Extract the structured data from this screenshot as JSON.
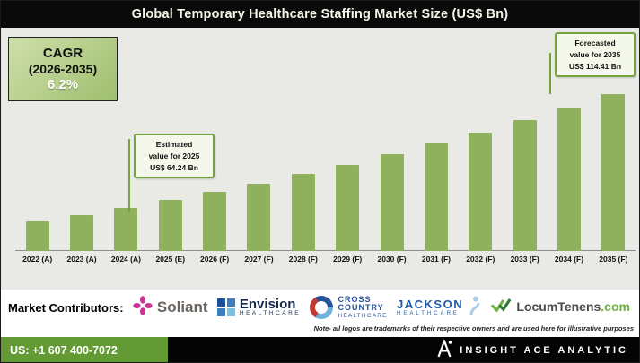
{
  "header": {
    "title": "Global Temporary Healthcare Staffing Market Size (US$ Bn)"
  },
  "cagr_box": {
    "line1": "CAGR",
    "line2": "(2026-2035)",
    "value": "6.2%"
  },
  "callouts": {
    "estimated": {
      "line1": "Estimated",
      "line2": "value for 2025",
      "line3": "US$ 64.24 Bn"
    },
    "forecasted": {
      "line1": "Forecasted",
      "line2": "value for 2035",
      "line3": "US$ 114.41 Bn"
    }
  },
  "chart_data": {
    "type": "bar",
    "title": "Global Temporary Healthcare Staffing Market Size (US$ Bn)",
    "unit": "US$ Bn",
    "categories": [
      "2022 (A)",
      "2023 (A)",
      "2024 (A)",
      "2025 (E)",
      "2026 (F)",
      "2027 (F)",
      "2028 (F)",
      "2029 (F)",
      "2030 (F)",
      "2031 (F)",
      "2032 (F)",
      "2033 (F)",
      "2034 (F)",
      "2035 (F)"
    ],
    "values": [
      54.0,
      57.2,
      60.6,
      64.24,
      68.1,
      72.1,
      76.4,
      80.9,
      85.8,
      90.9,
      96.3,
      102.0,
      108.1,
      114.41
    ],
    "known_points": {
      "2025 (E)": 64.24,
      "2035 (F)": 114.41
    },
    "cagr_2026_2035": "6.2%",
    "bar_color": "#8fb05c",
    "yaxis_visible": false,
    "annotations": [
      "Estimated value for 2025 US$ 64.24 Bn",
      "Forecasted value for 2035 US$ 114.41 Bn"
    ]
  },
  "contributors": {
    "label": "Market Contributors:",
    "items": [
      {
        "name": "Soliant"
      },
      {
        "name": "Envision",
        "sub": "HEALTHCARE"
      },
      {
        "line1": "CROSS",
        "line2": "COUNTRY",
        "sub": "HEALTHCARE"
      },
      {
        "name": "JACKSON",
        "sub": "HEALTHCARE"
      },
      {
        "name": "LocumTenens",
        "sub": ".com"
      }
    ]
  },
  "note": "Note- all logos are trademarks of their respective owners and are used here for illustrative purposes",
  "footer": {
    "phone": "US: +1 607 400-7072",
    "brand": "INSIGHT ACE ANALYTIC"
  }
}
